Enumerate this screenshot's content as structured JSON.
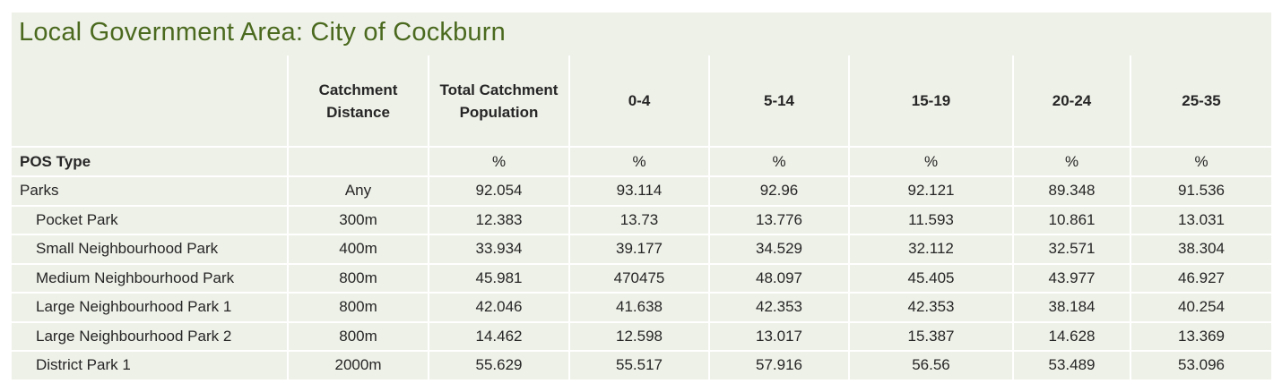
{
  "title": "Local Government Area: City of Cockburn",
  "columns": {
    "pos_type": "",
    "catchment_distance": "Catchment Distance",
    "total_population": "Total Catchment Population",
    "age_0_4": "0-4",
    "age_5_14": "5-14",
    "age_15_19": "15-19",
    "age_20_24": "20-24",
    "age_25_35": "25-35"
  },
  "units_row": {
    "label": "POS Type",
    "distance": "",
    "total": "%",
    "age_0_4": "%",
    "age_5_14": "%",
    "age_15_19": "%",
    "age_20_24": "%",
    "age_25_35": "%"
  },
  "rows": [
    {
      "name": "Parks",
      "distance": "Any",
      "total": "92.054",
      "a0_4": "93.114",
      "a5_14": "92.96",
      "a15_19": "92.121",
      "a20_24": "89.348",
      "a25_35": "91.536"
    },
    {
      "name": "Pocket Park",
      "distance": "300m",
      "total": "12.383",
      "a0_4": "13.73",
      "a5_14": "13.776",
      "a15_19": "11.593",
      "a20_24": "10.861",
      "a25_35": "13.031"
    },
    {
      "name": "Small Neighbourhood Park",
      "distance": "400m",
      "total": "33.934",
      "a0_4": "39.177",
      "a5_14": "34.529",
      "a15_19": "32.112",
      "a20_24": "32.571",
      "a25_35": "38.304"
    },
    {
      "name": "Medium Neighbourhood Park",
      "distance": "800m",
      "total": "45.981",
      "a0_4": "470475",
      "a5_14": "48.097",
      "a15_19": "45.405",
      "a20_24": "43.977",
      "a25_35": "46.927"
    },
    {
      "name": "Large Neighbourhood Park 1",
      "distance": "800m",
      "total": "42.046",
      "a0_4": "41.638",
      "a5_14": "42.353",
      "a15_19": "42.353",
      "a20_24": "38.184",
      "a25_35": "40.254"
    },
    {
      "name": "Large Neighbourhood Park 2",
      "distance": "800m",
      "total": "14.462",
      "a0_4": "12.598",
      "a5_14": "13.017",
      "a15_19": "15.387",
      "a20_24": "14.628",
      "a25_35": "13.369"
    },
    {
      "name": "District Park 1",
      "distance": "2000m",
      "total": "55.629",
      "a0_4": "55.517",
      "a5_14": "57.916",
      "a15_19": "56.56",
      "a20_24": "53.489",
      "a25_35": "53.096"
    }
  ],
  "colors": {
    "panel_background": "#eef1e8",
    "title_color": "#4b6a1f",
    "grid_lines": "#ffffff"
  }
}
